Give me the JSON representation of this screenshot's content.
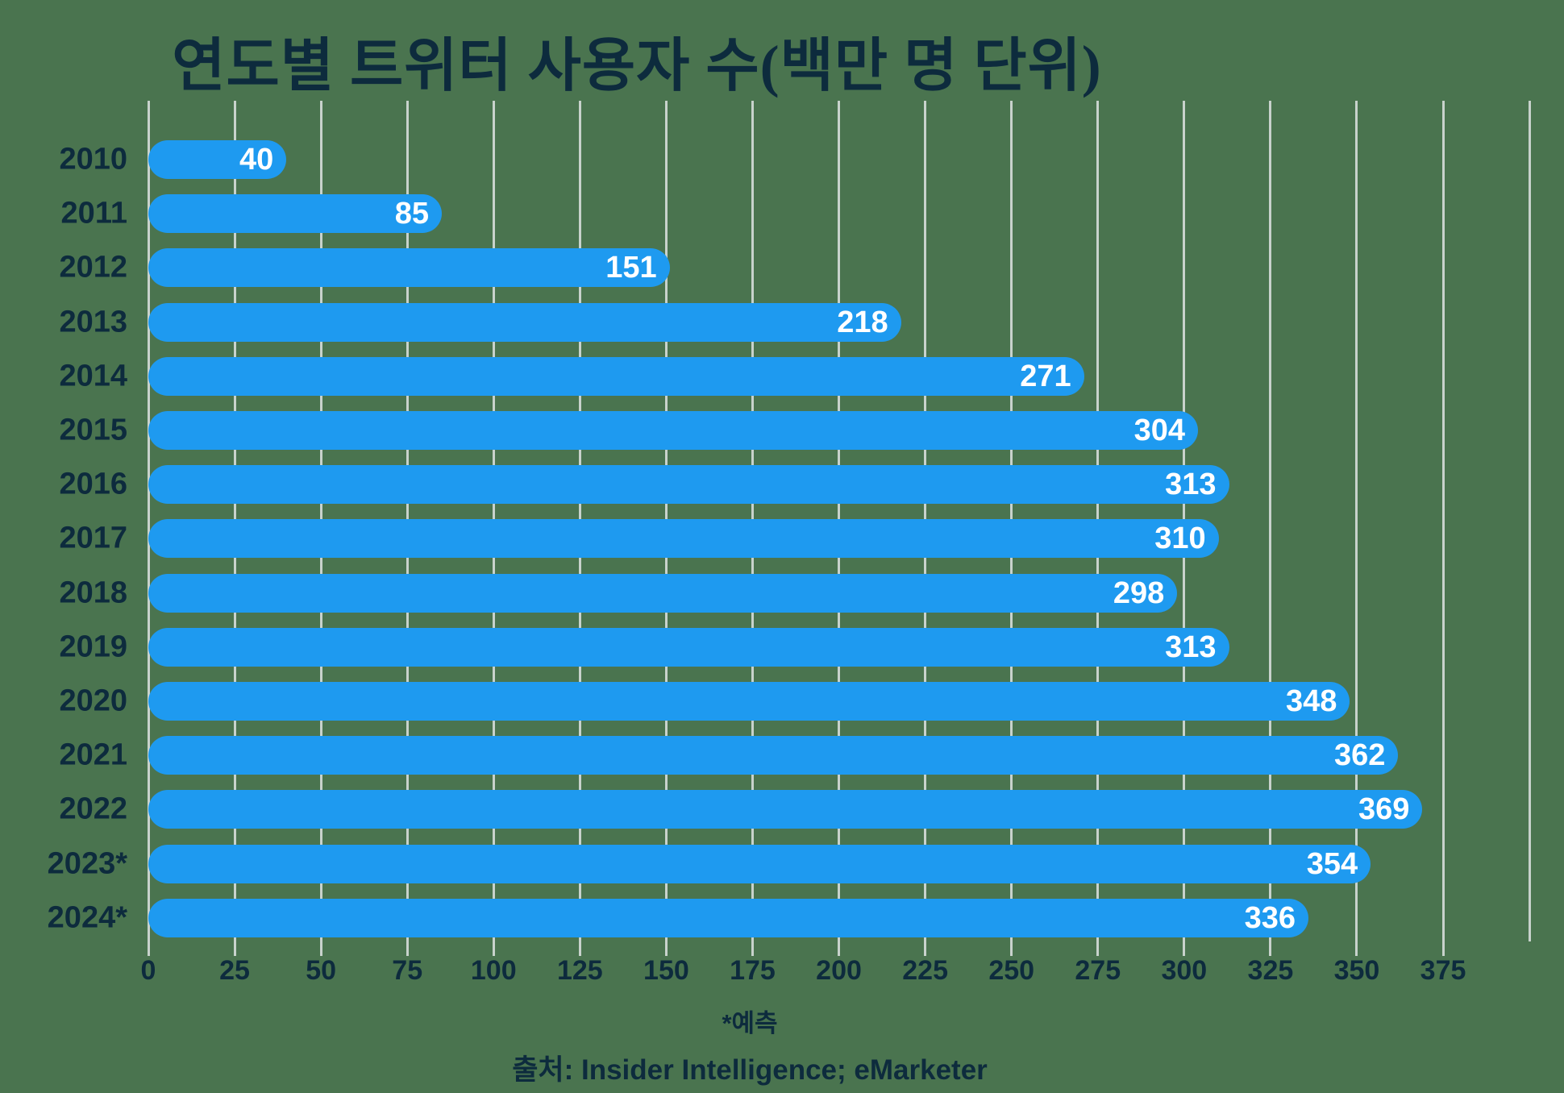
{
  "chart_data": {
    "type": "bar",
    "orientation": "horizontal",
    "title": "연도별 트위터 사용자 수(백만 명 단위)",
    "categories": [
      "2010",
      "2011",
      "2012",
      "2013",
      "2014",
      "2015",
      "2016",
      "2017",
      "2018",
      "2019",
      "2020",
      "2021",
      "2022",
      "2023*",
      "2024*"
    ],
    "values": [
      40,
      85,
      151,
      218,
      271,
      304,
      313,
      310,
      298,
      313,
      348,
      362,
      369,
      354,
      336
    ],
    "x_ticks": [
      0,
      25,
      50,
      75,
      100,
      125,
      150,
      175,
      200,
      225,
      250,
      275,
      300,
      325,
      350,
      375
    ],
    "xlim": [
      0,
      400
    ],
    "grid": true,
    "legend": "none",
    "footnote": "*예측",
    "source": "출처: Insider Intelligence; eMarketer",
    "colors": {
      "background": "#4A744F",
      "bar": "#1E9AF0",
      "grid": "#C8D2CC",
      "text": "#0D2B3D",
      "value_label": "#FFFFFF"
    }
  }
}
